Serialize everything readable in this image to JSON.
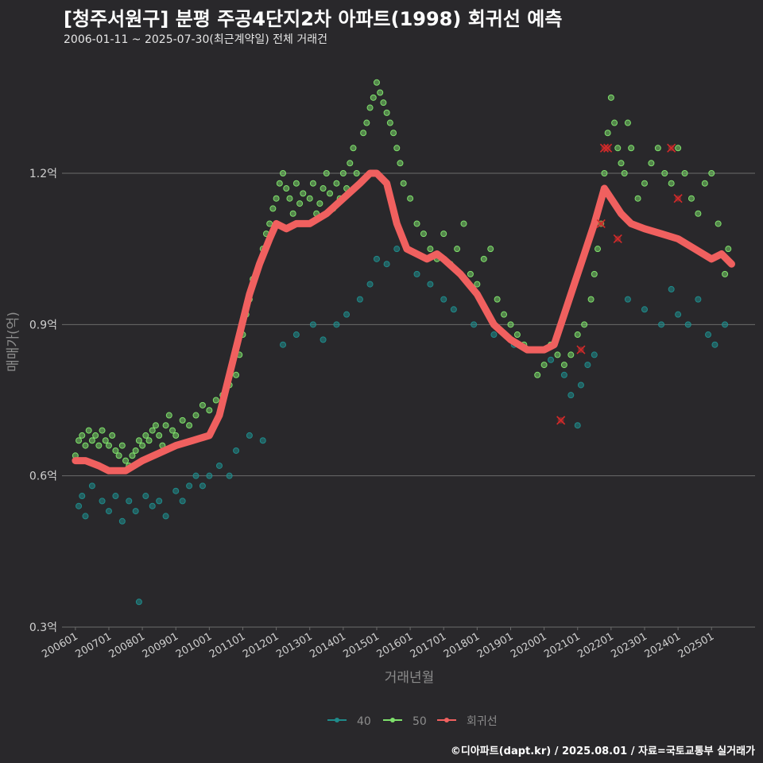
{
  "header": {
    "title": "[청주서원구] 분평 주공4단지2차 아파트(1998) 회귀선 예측",
    "subtitle": "2006-01-11 ~ 2025-07-30(최근계약일) 전체 거래건"
  },
  "footer": {
    "credit": "©디아파트(dapt.kr) / 2025.08.01 / 자료=국토교통부 실거래가"
  },
  "colors": {
    "background": "#29282b",
    "grid": "#6b6b6b",
    "series_40": "#1f8a8a",
    "series_50": "#7ee06b",
    "regression": "#f0605f",
    "outlier": "#d42a2a"
  },
  "chart_data": {
    "type": "scatter",
    "xlabel": "거래년월",
    "ylabel": "매매가(억)",
    "ylim": [
      0.3,
      1.32
    ],
    "xlim": [
      2005.6,
      2026.3
    ],
    "y_ticks": [
      {
        "value": 0.3,
        "label": "0.3억"
      },
      {
        "value": 0.6,
        "label": "0.6억"
      },
      {
        "value": 0.9,
        "label": "0.9억"
      },
      {
        "value": 1.2,
        "label": "1.2억"
      }
    ],
    "x_ticks": [
      {
        "value": 2006.0,
        "label": "200601"
      },
      {
        "value": 2007.0,
        "label": "200701"
      },
      {
        "value": 2008.0,
        "label": "200801"
      },
      {
        "value": 2009.0,
        "label": "200901"
      },
      {
        "value": 2010.0,
        "label": "201001"
      },
      {
        "value": 2011.0,
        "label": "201101"
      },
      {
        "value": 2012.0,
        "label": "201201"
      },
      {
        "value": 2013.0,
        "label": "201301"
      },
      {
        "value": 2014.0,
        "label": "201401"
      },
      {
        "value": 2015.0,
        "label": "201501"
      },
      {
        "value": 2016.0,
        "label": "201601"
      },
      {
        "value": 2017.0,
        "label": "201701"
      },
      {
        "value": 2018.0,
        "label": "201801"
      },
      {
        "value": 2019.0,
        "label": "201901"
      },
      {
        "value": 2020.0,
        "label": "202001"
      },
      {
        "value": 2021.0,
        "label": "202101"
      },
      {
        "value": 2022.0,
        "label": "202201"
      },
      {
        "value": 2023.0,
        "label": "202301"
      },
      {
        "value": 2024.0,
        "label": "202401"
      },
      {
        "value": 2025.0,
        "label": "202501"
      }
    ],
    "legend": {
      "position": "bottom",
      "items": [
        "40",
        "50",
        "회귀선"
      ]
    },
    "series": [
      {
        "name": "40",
        "points": [
          [
            2006.1,
            0.54
          ],
          [
            2006.2,
            0.56
          ],
          [
            2006.3,
            0.52
          ],
          [
            2006.5,
            0.58
          ],
          [
            2006.8,
            0.55
          ],
          [
            2007.0,
            0.53
          ],
          [
            2007.2,
            0.56
          ],
          [
            2007.4,
            0.51
          ],
          [
            2007.6,
            0.55
          ],
          [
            2007.8,
            0.53
          ],
          [
            2007.9,
            0.35
          ],
          [
            2008.1,
            0.56
          ],
          [
            2008.3,
            0.54
          ],
          [
            2008.5,
            0.55
          ],
          [
            2008.7,
            0.52
          ],
          [
            2009.0,
            0.57
          ],
          [
            2009.2,
            0.55
          ],
          [
            2009.4,
            0.58
          ],
          [
            2009.6,
            0.6
          ],
          [
            2009.8,
            0.58
          ],
          [
            2010.0,
            0.6
          ],
          [
            2010.3,
            0.62
          ],
          [
            2010.6,
            0.6
          ],
          [
            2010.8,
            0.65
          ],
          [
            2011.2,
            0.68
          ],
          [
            2011.6,
            0.67
          ],
          [
            2012.2,
            0.86
          ],
          [
            2012.6,
            0.88
          ],
          [
            2013.1,
            0.9
          ],
          [
            2013.4,
            0.87
          ],
          [
            2013.8,
            0.9
          ],
          [
            2014.1,
            0.92
          ],
          [
            2014.5,
            0.95
          ],
          [
            2014.8,
            0.98
          ],
          [
            2015.0,
            1.03
          ],
          [
            2015.3,
            1.02
          ],
          [
            2015.6,
            1.05
          ],
          [
            2016.2,
            1.0
          ],
          [
            2016.6,
            0.98
          ],
          [
            2017.0,
            0.95
          ],
          [
            2017.3,
            0.93
          ],
          [
            2017.9,
            0.9
          ],
          [
            2018.5,
            0.88
          ],
          [
            2019.1,
            0.86
          ],
          [
            2019.6,
            0.85
          ],
          [
            2020.2,
            0.83
          ],
          [
            2020.6,
            0.8
          ],
          [
            2020.8,
            0.76
          ],
          [
            2021.0,
            0.7
          ],
          [
            2021.1,
            0.78
          ],
          [
            2021.3,
            0.82
          ],
          [
            2021.5,
            0.84
          ],
          [
            2022.5,
            0.95
          ],
          [
            2023.0,
            0.93
          ],
          [
            2023.5,
            0.9
          ],
          [
            2023.8,
            0.97
          ],
          [
            2024.0,
            0.92
          ],
          [
            2024.3,
            0.9
          ],
          [
            2024.6,
            0.95
          ],
          [
            2024.9,
            0.88
          ],
          [
            2025.1,
            0.86
          ],
          [
            2025.4,
            0.9
          ]
        ]
      },
      {
        "name": "50",
        "points": [
          [
            2006.0,
            0.64
          ],
          [
            2006.1,
            0.67
          ],
          [
            2006.2,
            0.68
          ],
          [
            2006.3,
            0.66
          ],
          [
            2006.4,
            0.69
          ],
          [
            2006.5,
            0.67
          ],
          [
            2006.6,
            0.68
          ],
          [
            2006.7,
            0.66
          ],
          [
            2006.8,
            0.69
          ],
          [
            2006.9,
            0.67
          ],
          [
            2007.0,
            0.66
          ],
          [
            2007.1,
            0.68
          ],
          [
            2007.2,
            0.65
          ],
          [
            2007.3,
            0.64
          ],
          [
            2007.4,
            0.66
          ],
          [
            2007.5,
            0.63
          ],
          [
            2007.6,
            0.62
          ],
          [
            2007.7,
            0.64
          ],
          [
            2007.8,
            0.65
          ],
          [
            2007.9,
            0.67
          ],
          [
            2008.0,
            0.66
          ],
          [
            2008.1,
            0.68
          ],
          [
            2008.2,
            0.67
          ],
          [
            2008.3,
            0.69
          ],
          [
            2008.4,
            0.7
          ],
          [
            2008.5,
            0.68
          ],
          [
            2008.6,
            0.66
          ],
          [
            2008.7,
            0.7
          ],
          [
            2008.8,
            0.72
          ],
          [
            2008.9,
            0.69
          ],
          [
            2009.0,
            0.68
          ],
          [
            2009.2,
            0.71
          ],
          [
            2009.4,
            0.7
          ],
          [
            2009.6,
            0.72
          ],
          [
            2009.8,
            0.74
          ],
          [
            2010.0,
            0.73
          ],
          [
            2010.2,
            0.75
          ],
          [
            2010.4,
            0.76
          ],
          [
            2010.6,
            0.78
          ],
          [
            2010.8,
            0.8
          ],
          [
            2010.9,
            0.84
          ],
          [
            2011.0,
            0.88
          ],
          [
            2011.1,
            0.92
          ],
          [
            2011.2,
            0.95
          ],
          [
            2011.3,
            0.99
          ],
          [
            2011.4,
            1.0
          ],
          [
            2011.5,
            1.02
          ],
          [
            2011.6,
            1.05
          ],
          [
            2011.7,
            1.08
          ],
          [
            2011.8,
            1.1
          ],
          [
            2011.9,
            1.13
          ],
          [
            2012.0,
            1.15
          ],
          [
            2012.1,
            1.18
          ],
          [
            2012.2,
            1.2
          ],
          [
            2012.3,
            1.17
          ],
          [
            2012.4,
            1.15
          ],
          [
            2012.5,
            1.12
          ],
          [
            2012.6,
            1.18
          ],
          [
            2012.7,
            1.14
          ],
          [
            2012.8,
            1.16
          ],
          [
            2012.9,
            1.1
          ],
          [
            2013.0,
            1.15
          ],
          [
            2013.1,
            1.18
          ],
          [
            2013.2,
            1.12
          ],
          [
            2013.3,
            1.14
          ],
          [
            2013.4,
            1.17
          ],
          [
            2013.5,
            1.2
          ],
          [
            2013.6,
            1.16
          ],
          [
            2013.7,
            1.13
          ],
          [
            2013.8,
            1.18
          ],
          [
            2013.9,
            1.15
          ],
          [
            2014.0,
            1.2
          ],
          [
            2014.1,
            1.17
          ],
          [
            2014.2,
            1.22
          ],
          [
            2014.3,
            1.25
          ],
          [
            2014.4,
            1.2
          ],
          [
            2014.5,
            1.18
          ],
          [
            2014.6,
            1.28
          ],
          [
            2014.7,
            1.3
          ],
          [
            2014.8,
            1.33
          ],
          [
            2014.9,
            1.35
          ],
          [
            2015.0,
            1.38
          ],
          [
            2015.1,
            1.36
          ],
          [
            2015.2,
            1.34
          ],
          [
            2015.3,
            1.32
          ],
          [
            2015.4,
            1.3
          ],
          [
            2015.5,
            1.28
          ],
          [
            2015.6,
            1.25
          ],
          [
            2015.7,
            1.22
          ],
          [
            2015.8,
            1.18
          ],
          [
            2016.0,
            1.15
          ],
          [
            2016.2,
            1.1
          ],
          [
            2016.4,
            1.08
          ],
          [
            2016.6,
            1.05
          ],
          [
            2016.8,
            1.03
          ],
          [
            2017.0,
            1.08
          ],
          [
            2017.2,
            1.02
          ],
          [
            2017.4,
            1.05
          ],
          [
            2017.6,
            1.1
          ],
          [
            2017.8,
            1.0
          ],
          [
            2018.0,
            0.98
          ],
          [
            2018.2,
            1.03
          ],
          [
            2018.4,
            1.05
          ],
          [
            2018.6,
            0.95
          ],
          [
            2018.8,
            0.92
          ],
          [
            2019.0,
            0.9
          ],
          [
            2019.2,
            0.88
          ],
          [
            2019.4,
            0.86
          ],
          [
            2019.6,
            0.85
          ],
          [
            2019.8,
            0.8
          ],
          [
            2020.0,
            0.82
          ],
          [
            2020.2,
            0.86
          ],
          [
            2020.4,
            0.84
          ],
          [
            2020.6,
            0.82
          ],
          [
            2020.8,
            0.84
          ],
          [
            2021.0,
            0.88
          ],
          [
            2021.2,
            0.9
          ],
          [
            2021.4,
            0.95
          ],
          [
            2021.5,
            1.0
          ],
          [
            2021.6,
            1.05
          ],
          [
            2021.7,
            1.1
          ],
          [
            2021.8,
            1.2
          ],
          [
            2021.9,
            1.28
          ],
          [
            2022.0,
            1.35
          ],
          [
            2022.1,
            1.3
          ],
          [
            2022.2,
            1.25
          ],
          [
            2022.3,
            1.22
          ],
          [
            2022.4,
            1.2
          ],
          [
            2022.5,
            1.3
          ],
          [
            2022.6,
            1.25
          ],
          [
            2022.8,
            1.15
          ],
          [
            2023.0,
            1.18
          ],
          [
            2023.2,
            1.22
          ],
          [
            2023.4,
            1.25
          ],
          [
            2023.6,
            1.2
          ],
          [
            2023.8,
            1.18
          ],
          [
            2024.0,
            1.25
          ],
          [
            2024.2,
            1.2
          ],
          [
            2024.4,
            1.15
          ],
          [
            2024.6,
            1.12
          ],
          [
            2024.8,
            1.18
          ],
          [
            2025.0,
            1.2
          ],
          [
            2025.2,
            1.1
          ],
          [
            2025.4,
            1.0
          ],
          [
            2025.5,
            1.05
          ]
        ]
      },
      {
        "name": "회귀선",
        "points": [
          [
            2006.0,
            0.63
          ],
          [
            2006.3,
            0.63
          ],
          [
            2006.7,
            0.62
          ],
          [
            2007.0,
            0.61
          ],
          [
            2007.5,
            0.61
          ],
          [
            2008.0,
            0.63
          ],
          [
            2008.5,
            0.645
          ],
          [
            2009.0,
            0.66
          ],
          [
            2009.5,
            0.67
          ],
          [
            2010.0,
            0.68
          ],
          [
            2010.3,
            0.72
          ],
          [
            2010.6,
            0.8
          ],
          [
            2010.9,
            0.88
          ],
          [
            2011.2,
            0.96
          ],
          [
            2011.5,
            1.02
          ],
          [
            2011.8,
            1.07
          ],
          [
            2012.0,
            1.1
          ],
          [
            2012.3,
            1.09
          ],
          [
            2012.6,
            1.1
          ],
          [
            2013.0,
            1.1
          ],
          [
            2013.5,
            1.12
          ],
          [
            2014.0,
            1.15
          ],
          [
            2014.5,
            1.18
          ],
          [
            2014.8,
            1.2
          ],
          [
            2015.0,
            1.2
          ],
          [
            2015.3,
            1.18
          ],
          [
            2015.6,
            1.1
          ],
          [
            2015.9,
            1.05
          ],
          [
            2016.2,
            1.04
          ],
          [
            2016.5,
            1.03
          ],
          [
            2016.8,
            1.04
          ],
          [
            2017.0,
            1.03
          ],
          [
            2017.5,
            1.0
          ],
          [
            2018.0,
            0.96
          ],
          [
            2018.5,
            0.9
          ],
          [
            2019.0,
            0.87
          ],
          [
            2019.5,
            0.85
          ],
          [
            2020.0,
            0.85
          ],
          [
            2020.3,
            0.86
          ],
          [
            2020.6,
            0.92
          ],
          [
            2020.9,
            0.98
          ],
          [
            2021.2,
            1.04
          ],
          [
            2021.5,
            1.1
          ],
          [
            2021.8,
            1.17
          ],
          [
            2022.0,
            1.15
          ],
          [
            2022.3,
            1.12
          ],
          [
            2022.6,
            1.1
          ],
          [
            2023.0,
            1.09
          ],
          [
            2023.5,
            1.08
          ],
          [
            2024.0,
            1.07
          ],
          [
            2024.5,
            1.05
          ],
          [
            2025.0,
            1.03
          ],
          [
            2025.3,
            1.04
          ],
          [
            2025.6,
            1.02
          ]
        ]
      }
    ],
    "outliers": [
      [
        2020.5,
        0.71
      ],
      [
        2021.1,
        0.85
      ],
      [
        2021.7,
        1.1
      ],
      [
        2021.8,
        1.25
      ],
      [
        2021.9,
        1.25
      ],
      [
        2022.2,
        1.07
      ],
      [
        2023.8,
        1.25
      ],
      [
        2024.0,
        1.15
      ]
    ]
  }
}
